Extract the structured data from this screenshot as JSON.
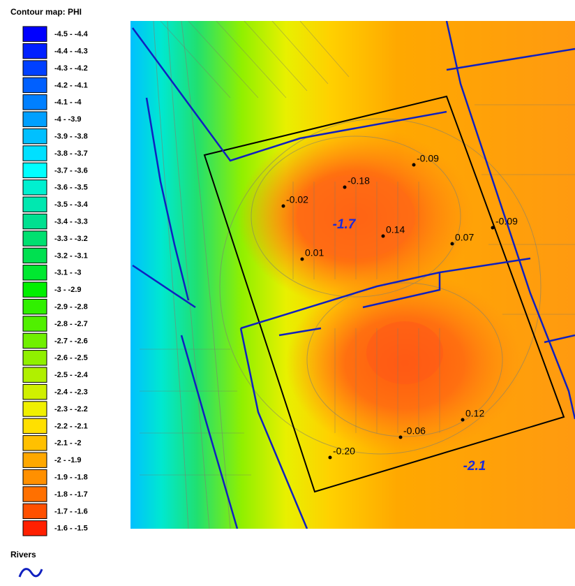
{
  "legend": {
    "title": "Contour map: PHI",
    "items": [
      {
        "label": "-4.5 - -4.4",
        "color": "#0000ff"
      },
      {
        "label": "-4.4 - -4.3",
        "color": "#0020ff"
      },
      {
        "label": "-4.3 - -4.2",
        "color": "#0040ff"
      },
      {
        "label": "-4.2 - -4.1",
        "color": "#0060ff"
      },
      {
        "label": "-4.1 - -4",
        "color": "#0080ff"
      },
      {
        "label": "-4 - -3.9",
        "color": "#00a0ff"
      },
      {
        "label": "-3.9 - -3.8",
        "color": "#00c0ff"
      },
      {
        "label": "-3.8 - -3.7",
        "color": "#00e0ff"
      },
      {
        "label": "-3.7 - -3.6",
        "color": "#00ffff"
      },
      {
        "label": "-3.6 - -3.5",
        "color": "#00f0d0"
      },
      {
        "label": "-3.5 - -3.4",
        "color": "#00e8b0"
      },
      {
        "label": "-3.4 - -3.3",
        "color": "#00e090"
      },
      {
        "label": "-3.3 - -3.2",
        "color": "#00e070"
      },
      {
        "label": "-3.2 - -3.1",
        "color": "#00e050"
      },
      {
        "label": "-3.1 - -3",
        "color": "#00e830"
      },
      {
        "label": "-3 - -2.9",
        "color": "#00f000"
      },
      {
        "label": "-2.9 - -2.8",
        "color": "#30f000"
      },
      {
        "label": "-2.8 - -2.7",
        "color": "#50f000"
      },
      {
        "label": "-2.7 - -2.6",
        "color": "#70f000"
      },
      {
        "label": "-2.6 - -2.5",
        "color": "#90f000"
      },
      {
        "label": "-2.5 - -2.4",
        "color": "#b0f000"
      },
      {
        "label": "-2.4 - -2.3",
        "color": "#d0f000"
      },
      {
        "label": "-2.3 - -2.2",
        "color": "#f0f000"
      },
      {
        "label": "-2.2 - -2.1",
        "color": "#ffe000"
      },
      {
        "label": "-2.1 - -2",
        "color": "#ffc000"
      },
      {
        "label": "-2 - -1.9",
        "color": "#ffa800"
      },
      {
        "label": "-1.9 - -1.8",
        "color": "#ff9000"
      },
      {
        "label": "-1.8 - -1.7",
        "color": "#ff7000"
      },
      {
        "label": "-1.7 - -1.6",
        "color": "#ff5000"
      },
      {
        "label": "-1.6 - -1.5",
        "color": "#ff2000"
      }
    ]
  },
  "map": {
    "contour_labels": [
      "-1.7",
      "-2.1"
    ],
    "points": [
      "-0.09",
      "-0.18",
      "-0.02",
      "0.14",
      "0.07",
      "-0.09",
      "0.01",
      "0.12",
      "-0.06",
      "-0.20"
    ]
  },
  "rivers_legend": {
    "title": "Rivers"
  }
}
